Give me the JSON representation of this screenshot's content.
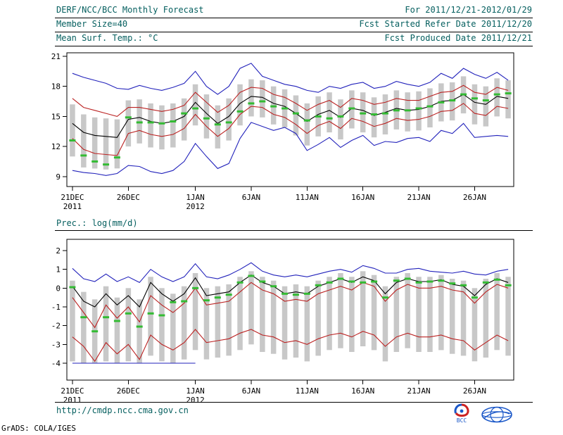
{
  "header": {
    "title": "DERF/NCC/BCC Monthly Forecast",
    "period": "For 2011/12/21-2012/01/29",
    "member_size": "Member Size=40",
    "refer_date": "Fcst Started Refer Date 2011/12/20",
    "var_label_top": "Mean Surf. Temp.: °C",
    "produced_date": "Fcst Produced Date 2011/12/21"
  },
  "mid_label": "Prec.: log(mm/d)",
  "footer": {
    "url": "http://cmdp.ncc.cma.gov.cn",
    "grads_credit": "GrADS: COLA/IGES",
    "bcc_logo_text": "BCC"
  },
  "colors": {
    "teal": "#055f5f",
    "blue": "#2222bb",
    "red": "#bb2222",
    "green": "#33bb33",
    "gray_bar": "#c8c8c8",
    "black": "#000000",
    "logo_blue": "#1a57c8",
    "logo_red": "#cc2222"
  },
  "chart_data": [
    {
      "type": "line",
      "title": "Mean Surf. Temp.: °C",
      "ylabel": "",
      "xlabel": "",
      "grid": false,
      "legend": "none",
      "ylim": [
        8.0,
        21.35
      ],
      "yticks": [
        9,
        12,
        15,
        18,
        21
      ],
      "x": [
        "21DEC",
        "22DEC",
        "23DEC",
        "24DEC",
        "25DEC",
        "26DEC",
        "27DEC",
        "28DEC",
        "29DEC",
        "30DEC",
        "31DEC",
        "1JAN",
        "2JAN",
        "3JAN",
        "4JAN",
        "5JAN",
        "6JAN",
        "7JAN",
        "8JAN",
        "9JAN",
        "10JAN",
        "11JAN",
        "12JAN",
        "13JAN",
        "14JAN",
        "15JAN",
        "16JAN",
        "17JAN",
        "18JAN",
        "19JAN",
        "20JAN",
        "21JAN",
        "22JAN",
        "23JAN",
        "24JAN",
        "25JAN",
        "26JAN",
        "27JAN",
        "28JAN",
        "29JAN"
      ],
      "x_ticks": [
        {
          "i": 0,
          "label": "21DEC",
          "sub": "2011"
        },
        {
          "i": 5,
          "label": "26DEC"
        },
        {
          "i": 11,
          "label": "1JAN",
          "sub": "2012"
        },
        {
          "i": 16,
          "label": "6JAN"
        },
        {
          "i": 21,
          "label": "11JAN"
        },
        {
          "i": 26,
          "label": "16JAN"
        },
        {
          "i": 31,
          "label": "21JAN"
        },
        {
          "i": 36,
          "label": "26JAN"
        }
      ],
      "series": [
        {
          "name": "ensemble-max",
          "color": "#2222bb",
          "values": [
            19.3,
            18.9,
            18.6,
            18.3,
            17.8,
            17.7,
            18.1,
            17.8,
            17.6,
            17.9,
            18.3,
            19.5,
            18.0,
            17.2,
            18.0,
            19.8,
            20.3,
            19.0,
            18.6,
            18.2,
            18.0,
            17.6,
            17.4,
            18.0,
            17.8,
            18.2,
            18.4,
            17.8,
            18.0,
            18.5,
            18.2,
            18.0,
            18.4,
            19.3,
            18.8,
            19.8,
            19.2,
            18.8,
            19.4,
            18.6
          ]
        },
        {
          "name": "mean-plus-spread",
          "color": "#bb2222",
          "values": [
            16.8,
            15.9,
            15.6,
            15.3,
            15.0,
            15.9,
            15.9,
            15.7,
            15.5,
            15.7,
            16.1,
            17.4,
            16.4,
            15.4,
            16.1,
            17.4,
            17.9,
            17.8,
            17.2,
            16.9,
            16.3,
            15.6,
            16.2,
            16.6,
            15.9,
            16.8,
            16.6,
            16.2,
            16.4,
            16.8,
            16.6,
            16.6,
            17.0,
            17.4,
            17.5,
            18.1,
            17.4,
            17.2,
            17.9,
            17.6
          ]
        },
        {
          "name": "ensemble-mean",
          "color": "#000000",
          "values": [
            14.3,
            13.4,
            13.1,
            13.0,
            12.9,
            14.7,
            14.9,
            14.5,
            14.3,
            14.5,
            15.0,
            16.4,
            15.3,
            14.3,
            15.0,
            16.3,
            17.0,
            16.9,
            16.3,
            16.0,
            15.3,
            14.5,
            15.2,
            15.6,
            14.9,
            15.8,
            15.6,
            15.1,
            15.4,
            15.8,
            15.6,
            15.7,
            16.0,
            16.5,
            16.6,
            17.2,
            16.4,
            16.2,
            17.0,
            16.8
          ]
        },
        {
          "name": "mean-minus-spread",
          "color": "#bb2222",
          "values": [
            12.8,
            11.7,
            11.3,
            11.2,
            11.1,
            13.3,
            13.6,
            13.2,
            13.0,
            13.2,
            13.8,
            15.2,
            14.0,
            13.0,
            13.8,
            15.2,
            16.0,
            15.9,
            15.2,
            14.9,
            14.2,
            13.3,
            14.1,
            14.5,
            13.8,
            14.8,
            14.5,
            14.0,
            14.3,
            14.8,
            14.6,
            14.7,
            15.0,
            15.5,
            15.6,
            16.3,
            15.3,
            15.1,
            16.0,
            15.8
          ]
        },
        {
          "name": "ensemble-min",
          "color": "#2222bb",
          "values": [
            9.6,
            9.4,
            9.3,
            9.1,
            9.3,
            10.1,
            10.0,
            9.5,
            9.3,
            9.6,
            10.5,
            12.3,
            11.0,
            9.8,
            10.3,
            12.8,
            14.4,
            14.0,
            13.6,
            13.9,
            13.3,
            11.6,
            12.2,
            12.9,
            11.9,
            12.6,
            13.1,
            12.1,
            12.5,
            12.4,
            12.8,
            12.9,
            12.5,
            13.6,
            13.3,
            14.3,
            12.9,
            13.0,
            13.1,
            13.0
          ]
        }
      ],
      "bars": {
        "name": "ensemble-spread-bar",
        "color": "#c8c8c8",
        "low": [
          11.0,
          9.9,
          9.8,
          9.7,
          9.8,
          12.0,
          12.3,
          11.9,
          11.7,
          11.9,
          12.6,
          14.1,
          12.8,
          11.8,
          12.6,
          14.1,
          15.0,
          14.9,
          14.2,
          13.9,
          13.1,
          12.1,
          13.0,
          13.4,
          12.7,
          13.8,
          13.4,
          12.9,
          13.2,
          13.7,
          13.5,
          13.6,
          13.9,
          14.5,
          14.6,
          15.3,
          14.2,
          14.0,
          15.0,
          14.8
        ],
        "high": [
          16.2,
          15.2,
          14.9,
          14.8,
          14.7,
          16.6,
          16.7,
          16.3,
          16.1,
          16.3,
          16.8,
          18.2,
          17.2,
          16.1,
          16.8,
          18.2,
          18.7,
          18.6,
          18.0,
          17.7,
          17.1,
          16.3,
          17.0,
          17.4,
          16.7,
          17.6,
          17.4,
          16.9,
          17.2,
          17.6,
          17.4,
          17.5,
          17.8,
          18.3,
          18.4,
          19.0,
          18.2,
          18.0,
          18.8,
          18.6
        ]
      },
      "markers": {
        "name": "obs-marker",
        "color": "#33bb33",
        "values": [
          12.6,
          11.1,
          10.5,
          10.2,
          10.9,
          14.9,
          14.4,
          14.4,
          14.3,
          14.5,
          15.3,
          15.8,
          14.8,
          14.2,
          14.4,
          15.5,
          16.3,
          16.5,
          16.0,
          15.8,
          15.3,
          14.6,
          15.0,
          14.8,
          15.0,
          15.8,
          15.3,
          15.2,
          15.3,
          15.6,
          15.6,
          15.8,
          16.0,
          16.4,
          16.6,
          17.2,
          16.8,
          16.6,
          17.2,
          17.3
        ]
      }
    },
    {
      "type": "line",
      "title": "Prec.: log(mm/d)",
      "ylabel": "",
      "xlabel": "",
      "grid": false,
      "legend": "none",
      "ylim": [
        -4.9,
        2.6
      ],
      "yticks": [
        -4,
        -3,
        -2,
        -1,
        0,
        1,
        2
      ],
      "x": [
        "21DEC",
        "22DEC",
        "23DEC",
        "24DEC",
        "25DEC",
        "26DEC",
        "27DEC",
        "28DEC",
        "29DEC",
        "30DEC",
        "31DEC",
        "1JAN",
        "2JAN",
        "3JAN",
        "4JAN",
        "5JAN",
        "6JAN",
        "7JAN",
        "8JAN",
        "9JAN",
        "10JAN",
        "11JAN",
        "12JAN",
        "13JAN",
        "14JAN",
        "15JAN",
        "16JAN",
        "17JAN",
        "18JAN",
        "19JAN",
        "20JAN",
        "21JAN",
        "22JAN",
        "23JAN",
        "24JAN",
        "25JAN",
        "26JAN",
        "27JAN",
        "28JAN",
        "29JAN"
      ],
      "x_ticks": [
        {
          "i": 0,
          "label": "21DEC",
          "sub": "2011"
        },
        {
          "i": 5,
          "label": "26DEC"
        },
        {
          "i": 11,
          "label": "1JAN",
          "sub": "2012"
        },
        {
          "i": 16,
          "label": "6JAN"
        },
        {
          "i": 21,
          "label": "11JAN"
        },
        {
          "i": 26,
          "label": "16JAN"
        },
        {
          "i": 31,
          "label": "21JAN"
        },
        {
          "i": 36,
          "label": "26JAN"
        }
      ],
      "series": [
        {
          "name": "ensemble-max",
          "color": "#2222bb",
          "values": [
            1.05,
            0.5,
            0.35,
            0.75,
            0.35,
            0.6,
            0.3,
            1.0,
            0.6,
            0.35,
            0.6,
            1.3,
            0.6,
            0.5,
            0.7,
            1.0,
            1.35,
            0.9,
            0.7,
            0.6,
            0.7,
            0.6,
            0.75,
            0.9,
            1.0,
            0.85,
            1.2,
            1.05,
            0.8,
            0.8,
            1.0,
            1.05,
            0.9,
            0.85,
            0.8,
            0.9,
            0.75,
            0.7,
            0.9,
            1.0
          ]
        },
        {
          "name": "ensemble-mean",
          "color": "#000000",
          "values": [
            0.1,
            -0.7,
            -1.0,
            -0.3,
            -0.9,
            -0.4,
            -1.0,
            0.3,
            -0.3,
            -0.7,
            -0.3,
            0.55,
            -0.4,
            -0.3,
            -0.2,
            0.3,
            0.7,
            0.3,
            0.1,
            -0.3,
            -0.2,
            -0.3,
            0.1,
            0.3,
            0.5,
            0.3,
            0.6,
            0.4,
            -0.3,
            0.3,
            0.5,
            0.35,
            0.35,
            0.45,
            0.2,
            0.1,
            -0.4,
            0.2,
            0.5,
            0.3
          ]
        },
        {
          "name": "mean-plus-spread",
          "color": "#bb2222",
          "values": [
            -0.5,
            -1.3,
            -2.1,
            -0.9,
            -1.6,
            -1.0,
            -1.8,
            -0.4,
            -0.9,
            -1.3,
            -0.8,
            0.0,
            -0.9,
            -0.8,
            -0.7,
            -0.2,
            0.3,
            -0.1,
            -0.3,
            -0.7,
            -0.6,
            -0.7,
            -0.3,
            -0.1,
            0.1,
            -0.1,
            0.3,
            0.1,
            -0.7,
            -0.1,
            0.2,
            0.0,
            0.0,
            0.1,
            -0.1,
            -0.2,
            -0.8,
            -0.2,
            0.2,
            0.0
          ]
        },
        {
          "name": "mean-minus-spread",
          "color": "#bb2222",
          "values": [
            -2.6,
            -3.1,
            -3.9,
            -2.9,
            -3.5,
            -3.0,
            -3.8,
            -2.5,
            -3.0,
            -3.3,
            -2.9,
            -2.2,
            -2.9,
            -2.8,
            -2.7,
            -2.4,
            -2.2,
            -2.5,
            -2.6,
            -2.9,
            -2.8,
            -3.0,
            -2.7,
            -2.5,
            -2.4,
            -2.6,
            -2.3,
            -2.5,
            -3.1,
            -2.6,
            -2.4,
            -2.6,
            -2.6,
            -2.5,
            -2.7,
            -2.8,
            -3.3,
            -2.9,
            -2.5,
            -2.8
          ]
        },
        {
          "name": "ensemble-min",
          "color": "#2222bb",
          "values": [
            -4,
            -4,
            -4,
            -4,
            -4,
            -4,
            -4,
            -4,
            -4,
            -4,
            -4,
            -4,
            null,
            null,
            null,
            null,
            null,
            null,
            null,
            null,
            null,
            null,
            null,
            null,
            null,
            null,
            null,
            null,
            null,
            null,
            null,
            null,
            null,
            null,
            null,
            null,
            null,
            null,
            null,
            null
          ]
        }
      ],
      "bars": {
        "name": "ensemble-spread-bar",
        "color": "#c8c8c8",
        "low": [
          -3.9,
          -4.0,
          -4.0,
          -3.9,
          -4.0,
          -3.9,
          -4.0,
          -3.6,
          -3.9,
          -4.0,
          -3.8,
          -3.3,
          -3.8,
          -3.7,
          -3.6,
          -3.3,
          -3.0,
          -3.4,
          -3.5,
          -3.8,
          -3.7,
          -3.9,
          -3.6,
          -3.3,
          -3.2,
          -3.4,
          -3.1,
          -3.3,
          -3.9,
          -3.4,
          -3.2,
          -3.4,
          -3.4,
          -3.3,
          -3.5,
          -3.6,
          -3.9,
          -3.7,
          -3.3,
          -3.6
        ],
        "high": [
          0.4,
          -0.2,
          -0.6,
          0.1,
          -0.5,
          0.0,
          -0.6,
          0.6,
          0.0,
          -0.3,
          0.1,
          0.8,
          0.0,
          0.1,
          0.2,
          0.6,
          0.9,
          0.6,
          0.4,
          0.1,
          0.2,
          0.1,
          0.4,
          0.6,
          0.8,
          0.6,
          0.9,
          0.7,
          0.1,
          0.6,
          0.8,
          0.6,
          0.6,
          0.7,
          0.5,
          0.4,
          0.0,
          0.5,
          0.8,
          0.6
        ]
      },
      "markers": {
        "name": "obs-marker",
        "color": "#33bb33",
        "values": [
          0.05,
          -1.55,
          -2.3,
          -1.55,
          -1.75,
          -1.35,
          -2.05,
          -1.35,
          -1.45,
          -0.75,
          -0.7,
          0.0,
          -0.65,
          -0.5,
          -0.35,
          0.3,
          0.65,
          0.35,
          0.1,
          -0.3,
          -0.35,
          -0.3,
          0.15,
          0.3,
          0.5,
          0.35,
          0.3,
          0.35,
          -0.5,
          0.4,
          0.5,
          0.3,
          0.35,
          0.4,
          0.25,
          0.15,
          -0.5,
          0.3,
          0.45,
          0.15
        ]
      }
    }
  ]
}
